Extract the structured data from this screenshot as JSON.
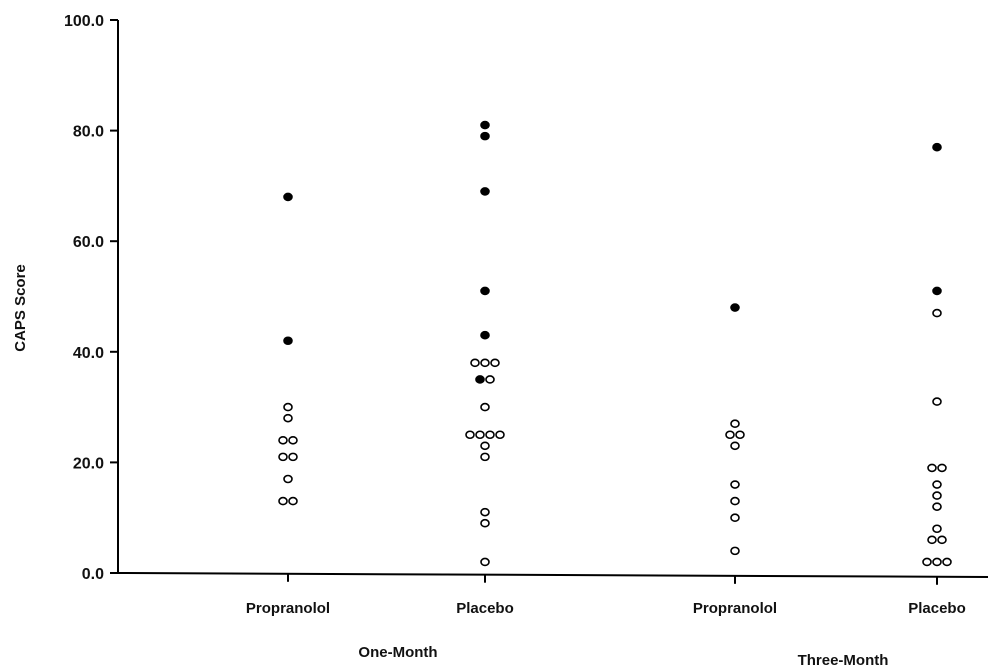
{
  "chart_data": {
    "type": "scatter",
    "title": "",
    "ylabel": "CAPS Score",
    "xlabel": "",
    "ylim": [
      0,
      100
    ],
    "yticks": [
      "0.0",
      "20.0",
      "40.0",
      "60.0",
      "80.0",
      "100.0"
    ],
    "grid": false,
    "groups": [
      {
        "label": "One-Month",
        "categories": [
          "Propranolol",
          "Placebo"
        ]
      },
      {
        "label": "Three-Month",
        "categories": [
          "Propranolol",
          "Placebo"
        ]
      }
    ],
    "categories": [
      "Propranolol",
      "Placebo",
      "Propranolol",
      "Placebo"
    ],
    "marker_legend": {
      "filled": "#000000",
      "open": "#ffffff"
    },
    "series": [
      {
        "category_index": 0,
        "filled": [
          68,
          42
        ],
        "open": [
          30,
          28,
          24,
          24,
          21,
          21,
          17,
          13,
          13
        ]
      },
      {
        "category_index": 1,
        "filled": [
          81,
          79,
          69,
          51,
          43,
          35
        ],
        "open": [
          38,
          38,
          38,
          35,
          30,
          25,
          25,
          25,
          25,
          23,
          21,
          11,
          9,
          2
        ]
      },
      {
        "category_index": 2,
        "filled": [
          48
        ],
        "open": [
          27,
          25,
          25,
          23,
          16,
          13,
          10,
          4
        ]
      },
      {
        "category_index": 3,
        "filled": [
          77,
          51
        ],
        "open": [
          47,
          31,
          19,
          19,
          16,
          14,
          12,
          8,
          6,
          6,
          2,
          2,
          2
        ]
      }
    ]
  }
}
